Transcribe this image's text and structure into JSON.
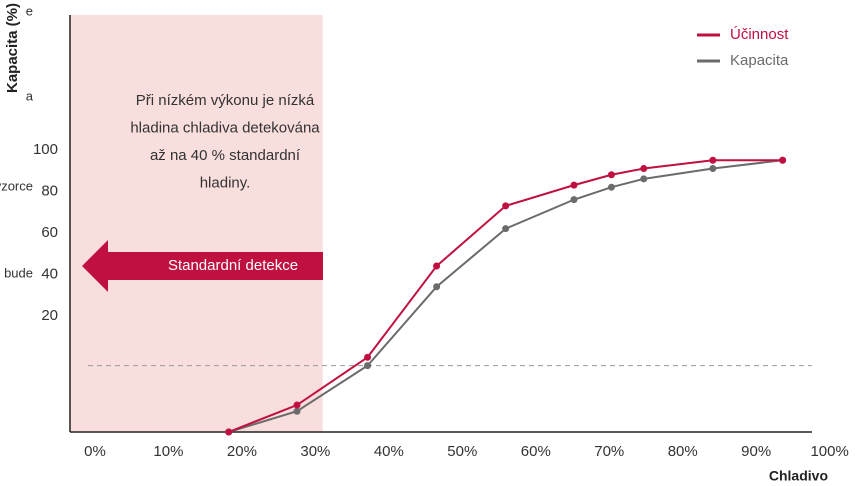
{
  "chart_data": {
    "type": "line",
    "y_label": "Kapacita (%)",
    "x_label": "Chladivo",
    "cropped_texts": [
      "e",
      "a",
      "vzorce",
      ", bude"
    ],
    "annotation": [
      "Při nízkém výkonu je nízká",
      "hladina chladiva detekována",
      "až na 40 % standardní",
      "hladiny."
    ],
    "arrow_label": "Standardní detekce",
    "shaded_region": [
      -3.4,
      31
    ],
    "hline": -4,
    "x": [
      18.2,
      27.5,
      37.1,
      46.5,
      55.9,
      65.2,
      70.3,
      74.7,
      84.1,
      93.6
    ],
    "series": [
      {
        "name": "Účinnost",
        "color": "#c0103f",
        "values": [
          -36,
          -23,
          0,
          44,
          73,
          83,
          88,
          91,
          95,
          95
        ]
      },
      {
        "name": "Kapacita",
        "color": "#6b6b6b",
        "values": [
          -36,
          -26,
          -4,
          34,
          62,
          76,
          82,
          86,
          91,
          95
        ]
      }
    ],
    "xlim": [
      -3.4,
      101
    ],
    "ylim": [
      -36,
      165
    ],
    "xticks": [
      {
        "value": 0,
        "label": "0%"
      },
      {
        "value": 10,
        "label": "10%"
      },
      {
        "value": 20,
        "label": "20%"
      },
      {
        "value": 30,
        "label": "30%"
      },
      {
        "value": 40,
        "label": "40%"
      },
      {
        "value": 50,
        "label": "50%"
      },
      {
        "value": 60,
        "label": "60%"
      },
      {
        "value": 70,
        "label": "70%"
      },
      {
        "value": 80,
        "label": "80%"
      },
      {
        "value": 90,
        "label": "90%"
      },
      {
        "value": 100,
        "label": "100%"
      }
    ],
    "yticks": [
      20,
      40,
      60,
      80,
      100
    ],
    "legend": "top-right",
    "shade_color": "#f8dedd",
    "arrow_color": "#c0103f"
  }
}
